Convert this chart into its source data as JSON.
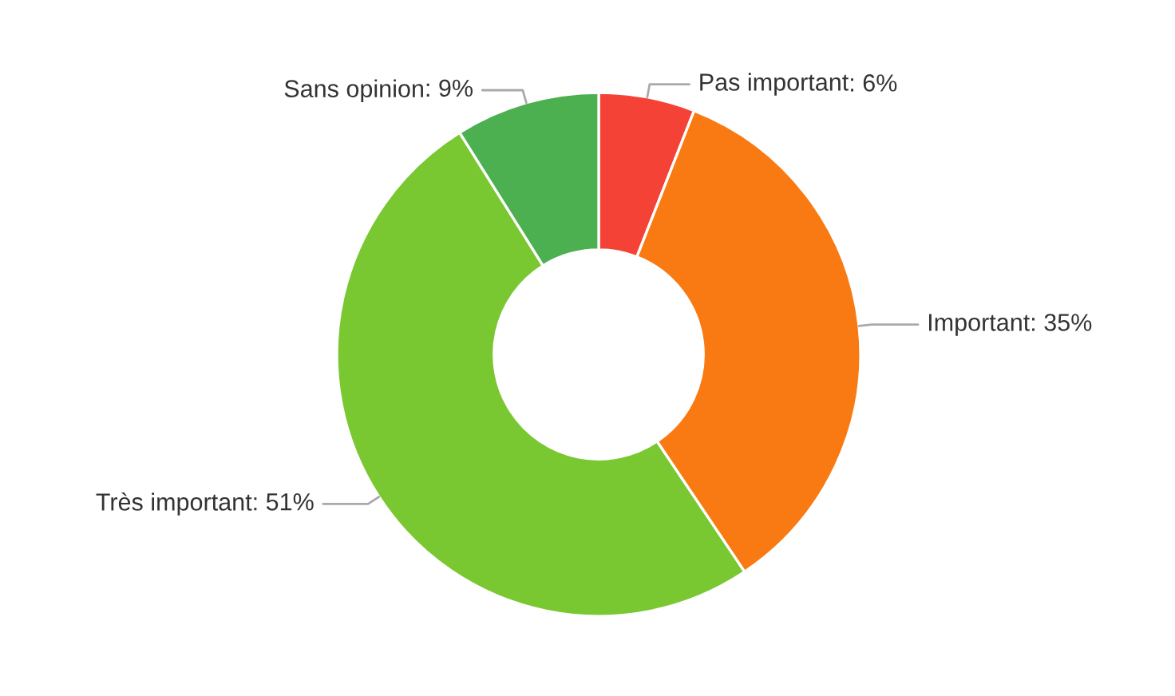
{
  "chart_data": {
    "type": "donut",
    "categories": [
      "Pas important",
      "Important",
      "Très important",
      "Sans opinion"
    ],
    "values": [
      6,
      35,
      51,
      9
    ],
    "value_labels": [
      ": 6%",
      ": 35%",
      ": 51%",
      ": 9%"
    ],
    "colors": [
      "#f44336",
      "#f97a12",
      "#79c832",
      "#4caf50"
    ]
  }
}
